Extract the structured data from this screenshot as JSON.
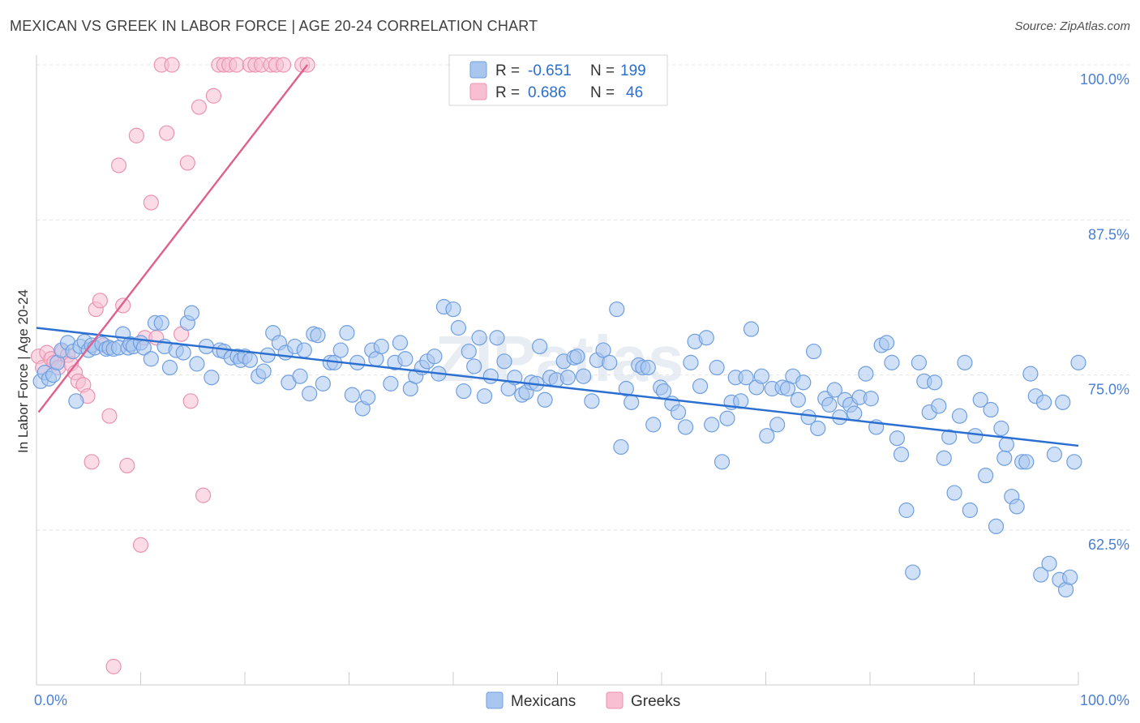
{
  "title": "MEXICAN VS GREEK IN LABOR FORCE | AGE 20-24 CORRELATION CHART",
  "source": "Source: ZipAtlas.com",
  "watermark": "ZIPatlas",
  "colors": {
    "blue_fill": "#a9c6ef",
    "blue_stroke": "#6f9fe0",
    "blue_line": "#2b6fd1",
    "pink_fill": "#f7bfd1",
    "pink_stroke": "#ea93b1",
    "pink_line": "#e05f8d",
    "tick_text": "#4a7fd4",
    "grid": "#e3e3e3"
  },
  "legend": {
    "r_label": "R =",
    "n_label": "N =",
    "rows": [
      {
        "r": "-0.651",
        "n": "199"
      },
      {
        "r": "0.686",
        "n": "46"
      }
    ]
  },
  "bottom_legend": [
    "Mexicans",
    "Greeks"
  ],
  "chart_data": {
    "type": "scatter",
    "xlabel": "",
    "ylabel": "In Labor Force | Age 20-24",
    "xlim": [
      0,
      100
    ],
    "ylim": [
      51.5,
      101.2
    ],
    "x_tick_labels": [
      "0.0%",
      "100.0%"
    ],
    "y_ticks": [
      {
        "value": 100.0,
        "label": "100.0%"
      },
      {
        "value": 87.5,
        "label": "87.5%"
      },
      {
        "value": 75.0,
        "label": "75.0%"
      },
      {
        "value": 62.5,
        "label": "62.5%"
      }
    ],
    "grid": true,
    "series": [
      {
        "name": "Mexicans",
        "r": -0.651,
        "n": 199,
        "trend": [
          [
            0,
            78.8
          ],
          [
            100,
            69.3
          ]
        ],
        "points": [
          [
            0.4,
            74.5
          ],
          [
            0.8,
            75.2
          ],
          [
            1.2,
            74.7
          ],
          [
            1.6,
            75.0
          ],
          [
            2.0,
            76.0
          ],
          [
            2.4,
            77.0
          ],
          [
            3.0,
            77.6
          ],
          [
            3.5,
            76.9
          ],
          [
            3.8,
            72.9
          ],
          [
            4.2,
            77.3
          ],
          [
            4.6,
            77.7
          ],
          [
            5.0,
            77.0
          ],
          [
            5.3,
            77.4
          ],
          [
            5.6,
            77.2
          ],
          [
            6.3,
            77.5
          ],
          [
            6.7,
            77.1
          ],
          [
            7.0,
            77.2
          ],
          [
            7.4,
            77.1
          ],
          [
            7.9,
            77.2
          ],
          [
            8.3,
            78.3
          ],
          [
            8.8,
            77.2
          ],
          [
            9.0,
            77.5
          ],
          [
            9.3,
            77.3
          ],
          [
            10.0,
            77.6
          ],
          [
            10.3,
            77.2
          ],
          [
            11.0,
            76.3
          ],
          [
            11.4,
            79.2
          ],
          [
            12.0,
            79.2
          ],
          [
            12.3,
            77.3
          ],
          [
            12.8,
            75.6
          ],
          [
            13.4,
            77.0
          ],
          [
            14.1,
            76.8
          ],
          [
            14.5,
            79.2
          ],
          [
            14.9,
            80.0
          ],
          [
            15.4,
            75.9
          ],
          [
            16.3,
            77.3
          ],
          [
            16.8,
            74.8
          ],
          [
            17.6,
            77.0
          ],
          [
            18.0,
            76.9
          ],
          [
            18.7,
            76.4
          ],
          [
            19.3,
            76.5
          ],
          [
            19.6,
            76.2
          ],
          [
            20.0,
            76.5
          ],
          [
            20.5,
            76.2
          ],
          [
            21.3,
            74.9
          ],
          [
            21.8,
            75.3
          ],
          [
            22.2,
            76.6
          ],
          [
            22.7,
            78.4
          ],
          [
            23.3,
            77.6
          ],
          [
            23.9,
            76.8
          ],
          [
            24.2,
            74.4
          ],
          [
            24.8,
            77.3
          ],
          [
            25.3,
            74.9
          ],
          [
            25.7,
            77.0
          ],
          [
            26.2,
            73.5
          ],
          [
            26.6,
            78.3
          ],
          [
            27.0,
            78.2
          ],
          [
            27.5,
            74.3
          ],
          [
            28.2,
            76.0
          ],
          [
            28.6,
            76.0
          ],
          [
            29.2,
            77.0
          ],
          [
            29.8,
            78.4
          ],
          [
            30.3,
            73.4
          ],
          [
            30.8,
            76.0
          ],
          [
            31.3,
            72.3
          ],
          [
            31.8,
            73.2
          ],
          [
            32.2,
            77.0
          ],
          [
            32.6,
            76.3
          ],
          [
            33.1,
            77.3
          ],
          [
            34.0,
            74.3
          ],
          [
            34.4,
            76.0
          ],
          [
            34.9,
            77.6
          ],
          [
            35.4,
            76.3
          ],
          [
            35.9,
            73.9
          ],
          [
            36.4,
            74.9
          ],
          [
            37.0,
            75.6
          ],
          [
            37.5,
            76.1
          ],
          [
            38.2,
            76.5
          ],
          [
            38.6,
            75.1
          ],
          [
            39.1,
            80.5
          ],
          [
            40.0,
            80.3
          ],
          [
            40.5,
            78.8
          ],
          [
            41.0,
            73.7
          ],
          [
            41.5,
            76.9
          ],
          [
            42.0,
            75.7
          ],
          [
            42.5,
            78.0
          ],
          [
            43.0,
            73.3
          ],
          [
            43.6,
            74.9
          ],
          [
            44.2,
            78.0
          ],
          [
            44.9,
            76.1
          ],
          [
            45.3,
            73.9
          ],
          [
            45.9,
            74.8
          ],
          [
            46.6,
            73.4
          ],
          [
            47.0,
            73.6
          ],
          [
            47.5,
            74.4
          ],
          [
            48.0,
            74.3
          ],
          [
            48.3,
            77.3
          ],
          [
            48.8,
            73.0
          ],
          [
            49.3,
            74.8
          ],
          [
            49.9,
            74.6
          ],
          [
            50.6,
            76.1
          ],
          [
            51.0,
            74.8
          ],
          [
            51.6,
            76.4
          ],
          [
            51.9,
            76.5
          ],
          [
            52.5,
            74.9
          ],
          [
            53.3,
            72.9
          ],
          [
            53.8,
            76.2
          ],
          [
            54.4,
            77.0
          ],
          [
            55.0,
            76.0
          ],
          [
            55.7,
            80.3
          ],
          [
            56.1,
            69.2
          ],
          [
            56.6,
            73.9
          ],
          [
            57.1,
            72.8
          ],
          [
            57.8,
            75.8
          ],
          [
            58.2,
            75.6
          ],
          [
            58.7,
            75.6
          ],
          [
            59.2,
            71.0
          ],
          [
            59.9,
            74.0
          ],
          [
            60.2,
            73.7
          ],
          [
            61.0,
            72.7
          ],
          [
            61.6,
            72.0
          ],
          [
            62.3,
            70.8
          ],
          [
            62.8,
            76.0
          ],
          [
            63.2,
            77.7
          ],
          [
            63.7,
            74.1
          ],
          [
            64.3,
            78.0
          ],
          [
            64.8,
            71.0
          ],
          [
            65.3,
            75.6
          ],
          [
            65.8,
            68.0
          ],
          [
            66.3,
            71.5
          ],
          [
            66.7,
            72.8
          ],
          [
            67.1,
            74.8
          ],
          [
            67.6,
            72.9
          ],
          [
            68.1,
            74.8
          ],
          [
            68.6,
            78.7
          ],
          [
            69.1,
            74.0
          ],
          [
            69.6,
            74.9
          ],
          [
            70.1,
            70.1
          ],
          [
            70.6,
            73.9
          ],
          [
            71.1,
            71.0
          ],
          [
            71.6,
            74.0
          ],
          [
            72.1,
            73.9
          ],
          [
            72.6,
            74.9
          ],
          [
            73.1,
            73.0
          ],
          [
            73.6,
            74.4
          ],
          [
            74.1,
            71.6
          ],
          [
            74.6,
            76.9
          ],
          [
            75.0,
            70.7
          ],
          [
            75.7,
            73.1
          ],
          [
            76.1,
            72.6
          ],
          [
            76.6,
            73.8
          ],
          [
            77.1,
            71.6
          ],
          [
            77.6,
            73.0
          ],
          [
            78.1,
            72.6
          ],
          [
            78.5,
            71.9
          ],
          [
            79.0,
            73.2
          ],
          [
            79.6,
            75.1
          ],
          [
            80.1,
            73.1
          ],
          [
            80.6,
            70.8
          ],
          [
            81.1,
            77.4
          ],
          [
            81.6,
            77.6
          ],
          [
            82.1,
            76.0
          ],
          [
            82.6,
            69.9
          ],
          [
            83.0,
            68.6
          ],
          [
            83.5,
            64.1
          ],
          [
            84.1,
            59.1
          ],
          [
            84.7,
            76.0
          ],
          [
            85.2,
            74.5
          ],
          [
            85.7,
            72.0
          ],
          [
            86.2,
            74.4
          ],
          [
            86.6,
            72.5
          ],
          [
            87.1,
            68.3
          ],
          [
            87.6,
            70.0
          ],
          [
            88.1,
            65.5
          ],
          [
            88.6,
            71.7
          ],
          [
            89.1,
            76.0
          ],
          [
            89.6,
            64.1
          ],
          [
            90.1,
            70.1
          ],
          [
            90.6,
            73.0
          ],
          [
            91.1,
            66.9
          ],
          [
            91.6,
            72.2
          ],
          [
            92.1,
            62.8
          ],
          [
            92.6,
            70.7
          ],
          [
            92.9,
            68.3
          ],
          [
            93.1,
            69.4
          ],
          [
            93.6,
            65.2
          ],
          [
            94.1,
            64.4
          ],
          [
            94.6,
            68.0
          ],
          [
            95.0,
            68.0
          ],
          [
            95.4,
            75.1
          ],
          [
            95.9,
            73.3
          ],
          [
            96.4,
            58.9
          ],
          [
            96.7,
            72.8
          ],
          [
            97.2,
            59.8
          ],
          [
            97.7,
            68.6
          ],
          [
            98.2,
            58.5
          ],
          [
            98.5,
            72.8
          ],
          [
            98.8,
            57.7
          ],
          [
            99.2,
            58.7
          ],
          [
            99.6,
            68.0
          ],
          [
            100.0,
            76.0
          ]
        ]
      },
      {
        "name": "Greeks",
        "r": 0.686,
        "n": 46,
        "trend": [
          [
            0.2,
            72.0
          ],
          [
            26.0,
            100.0
          ]
        ],
        "points": [
          [
            0.2,
            76.5
          ],
          [
            0.6,
            75.6
          ],
          [
            1.0,
            76.8
          ],
          [
            1.4,
            76.3
          ],
          [
            1.7,
            76.0
          ],
          [
            2.1,
            75.6
          ],
          [
            2.5,
            76.9
          ],
          [
            3.0,
            76.6
          ],
          [
            3.3,
            75.9
          ],
          [
            3.7,
            75.2
          ],
          [
            4.0,
            74.5
          ],
          [
            4.5,
            74.2
          ],
          [
            4.9,
            73.3
          ],
          [
            5.3,
            68.0
          ],
          [
            5.7,
            80.3
          ],
          [
            6.1,
            81.0
          ],
          [
            6.5,
            77.4
          ],
          [
            7.0,
            71.7
          ],
          [
            7.4,
            51.5
          ],
          [
            7.9,
            91.9
          ],
          [
            8.3,
            80.6
          ],
          [
            8.7,
            67.7
          ],
          [
            9.6,
            94.3
          ],
          [
            10.0,
            61.3
          ],
          [
            10.4,
            78.0
          ],
          [
            11.0,
            88.9
          ],
          [
            11.5,
            78.0
          ],
          [
            12.0,
            100.0
          ],
          [
            12.5,
            94.5
          ],
          [
            13.0,
            100.0
          ],
          [
            13.9,
            78.3
          ],
          [
            14.5,
            92.1
          ],
          [
            14.8,
            72.9
          ],
          [
            15.6,
            96.6
          ],
          [
            16.0,
            65.3
          ],
          [
            17.0,
            97.5
          ],
          [
            17.5,
            100.0
          ],
          [
            18.0,
            100.0
          ],
          [
            18.5,
            100.0
          ],
          [
            19.2,
            100.0
          ],
          [
            20.5,
            100.0
          ],
          [
            21.0,
            100.0
          ],
          [
            21.6,
            100.0
          ],
          [
            22.5,
            100.0
          ],
          [
            23.0,
            100.0
          ],
          [
            23.7,
            100.0
          ],
          [
            25.5,
            100.0
          ],
          [
            26.0,
            100.0
          ]
        ]
      }
    ]
  }
}
